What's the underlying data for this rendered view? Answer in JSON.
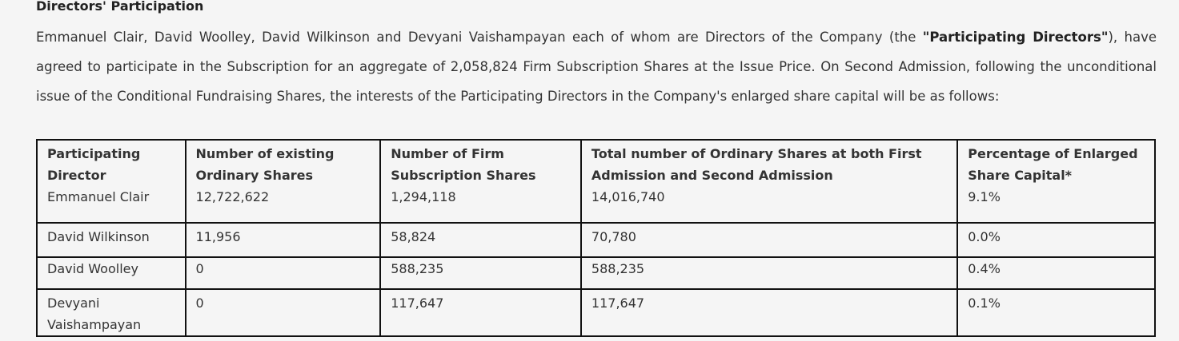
{
  "section": {
    "heading": "Directors' Participation",
    "paragraph": {
      "before_bold": "Emmanuel Clair, David Woolley, David Wilkinson and Devyani Vaishampayan each of whom are Directors of the Company (the ",
      "bold": "\"Participating Directors\"",
      "after_bold": "), have agreed to participate in the Subscription for an aggregate of 2,058,824 Firm Subscription Shares at the Issue Price. On Second Admission, following the unconditional issue of the Conditional Fundraising Shares, the interests of the Participating Directors in the Company's enlarged share capital will be as follows:"
    }
  },
  "table": {
    "headers": [
      "Participating Director",
      "Number of existing Ordinary Shares",
      "Number of Firm Subscription Shares",
      "Total number of Ordinary Shares at both First Admission and Second Admission",
      "Percentage of Enlarged Share Capital*"
    ],
    "rows": [
      [
        "Emmanuel Clair",
        "12,722,622",
        "1,294,118",
        "14,016,740",
        "9.1%"
      ],
      [
        "David Wilkinson",
        "11,956",
        "58,824",
        "70,780",
        "0.0%"
      ],
      [
        "David Woolley",
        "0",
        "588,235",
        "588,235",
        "0.4%"
      ],
      [
        "Devyani Vaishampayan",
        "0",
        "117,647",
        "117,647",
        "0.1%"
      ]
    ]
  }
}
